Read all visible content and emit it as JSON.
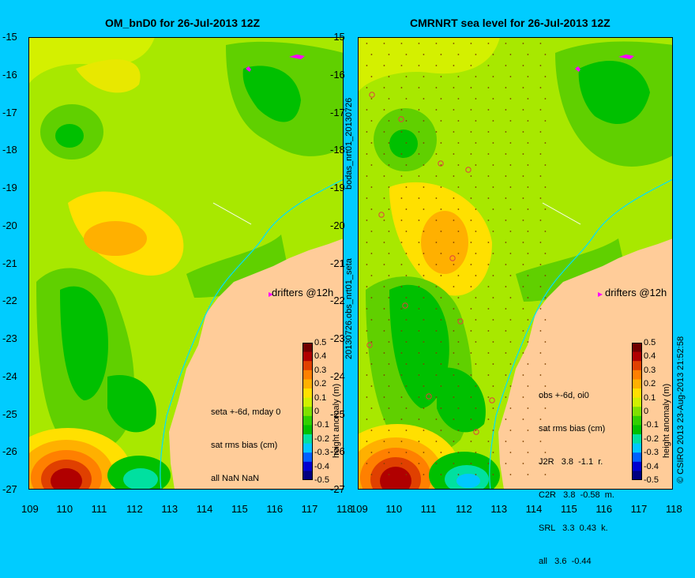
{
  "colors": {
    "frame_bg": "#00ccff",
    "land": "#ffcc99",
    "anomaly_scale": [
      "#000080",
      "#0000d0",
      "#0060ff",
      "#00c8ff",
      "#00e0a0",
      "#00c000",
      "#30d000",
      "#80e000",
      "#d0f000",
      "#ffe000",
      "#ffb000",
      "#ff8000",
      "#e04000",
      "#b00000",
      "#700000"
    ],
    "drifter": "#ff00ff",
    "shelf_line": "#00e0ff"
  },
  "left_panel": {
    "title": "OM_bnD0 for 26-Jul-2013 12Z",
    "drifters_label": "drifters @12h",
    "stats_lines": [
      "seta +-6d, mday 0",
      "sat rms bias (cm)",
      "all NaN NaN"
    ]
  },
  "right_panel": {
    "title": "CMRNRT sea level  for 26-Jul-2013 12Z",
    "drifters_label": "drifters @12h",
    "stats_lines": [
      "obs +-6d, oi0",
      "sat rms bias (cm)",
      "J2R   3.8  -1.1  r.",
      "C2R   3.8  -0.58  m.",
      "SRL   3.3  0.43  k.",
      "all   3.6  -0.44"
    ]
  },
  "axes": {
    "lat_ticks": [
      "-15",
      "-16",
      "-17",
      "-18",
      "-19",
      "-20",
      "-21",
      "-22",
      "-23",
      "-24",
      "-25",
      "-26",
      "-27"
    ],
    "lon_ticks": [
      "109",
      "110",
      "111",
      "112",
      "113",
      "114",
      "115",
      "116",
      "117",
      "118"
    ],
    "lon_range": [
      109,
      118
    ],
    "lat_range": [
      -27,
      -15
    ]
  },
  "colorbar": {
    "label": "height anomaly (m)",
    "ticks": [
      "0.5",
      "0.4",
      "0.3",
      "0.2",
      "0.1",
      "0",
      "-0.1",
      "-0.2",
      "-0.3",
      "-0.4",
      "-0.5"
    ],
    "range": [
      -0.5,
      0.5
    ]
  },
  "side_labels": {
    "between_top": "bodas_nrt01_20130726",
    "between_bottom": "20130726.obs_nrt01_seta",
    "right_edge": "© CSIRO 2013   23-Aug-2013 21:52:58"
  }
}
